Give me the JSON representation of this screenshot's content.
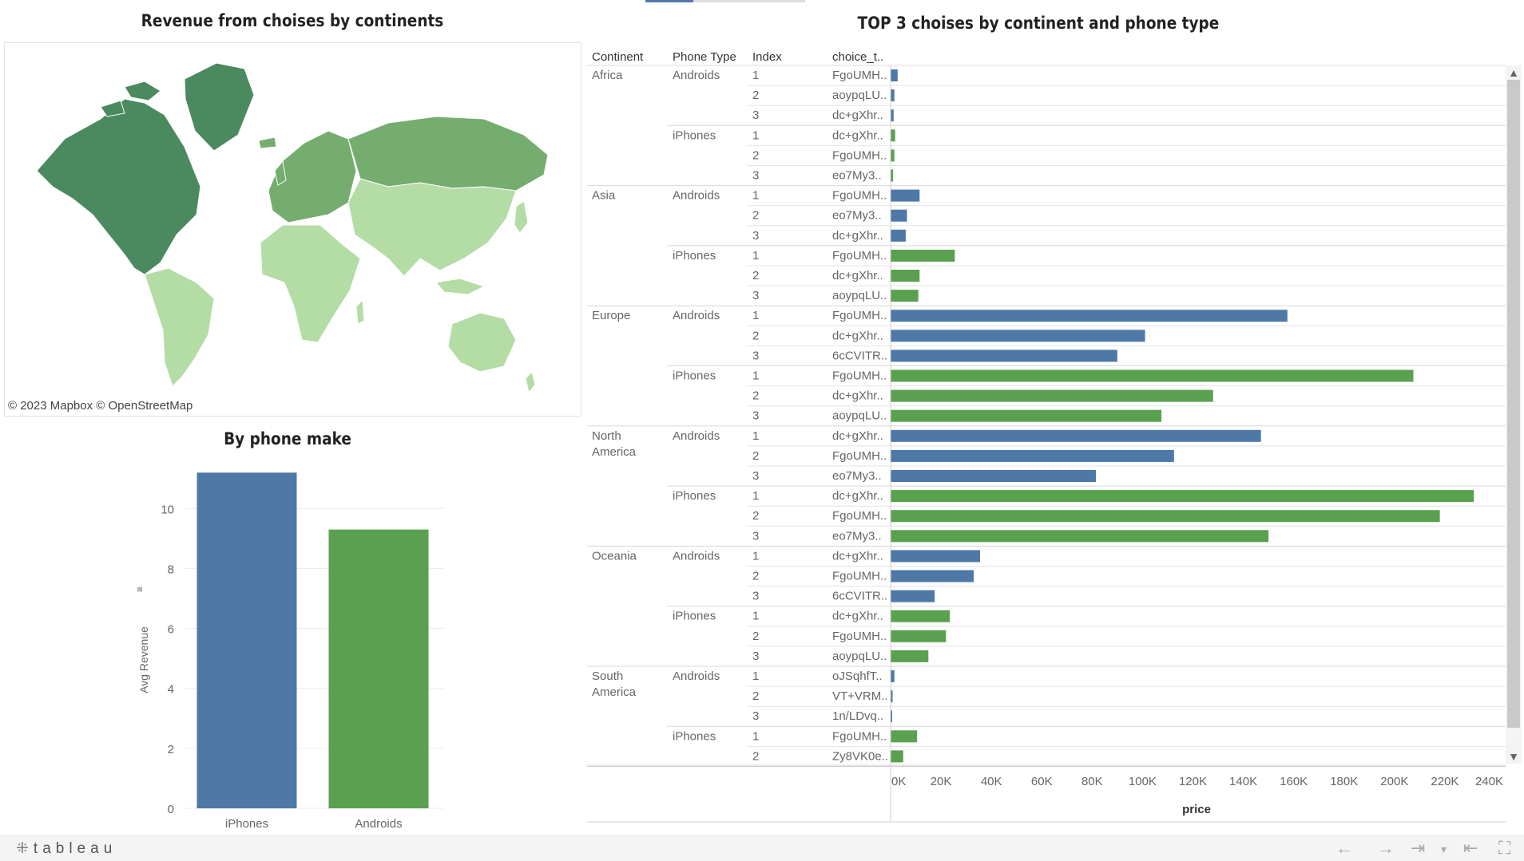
{
  "map": {
    "title": "Revenue from choises by continents",
    "attribution": "© 2023 Mapbox © OpenStreetMap",
    "legend_colors": [
      "#4a8a5e",
      "#74ad6e",
      "#b4dca5"
    ]
  },
  "make_chart": {
    "title": "By phone make",
    "chart_data": {
      "type": "bar",
      "categories": [
        "iPhones",
        "Androids"
      ],
      "values": [
        11.2,
        9.3
      ],
      "ylabel": "Avg Revenue",
      "ylim": [
        0,
        11.5
      ],
      "yticks": [
        0,
        2,
        4,
        6,
        8,
        10
      ],
      "colors": [
        "#4e79a7",
        "#59a14f"
      ],
      "grid": true
    }
  },
  "top3": {
    "title": "TOP 3 choises by continent and phone type",
    "headers": [
      "Continent",
      "Phone Type",
      "Index",
      "choice_t.."
    ],
    "chart_data": {
      "type": "bar",
      "orientation": "horizontal",
      "x_label": "price",
      "xlim": [
        0,
        240000
      ],
      "xticks": [
        "0K",
        "20K",
        "40K",
        "60K",
        "80K",
        "100K",
        "120K",
        "140K",
        "160K",
        "180K",
        "200K",
        "220K",
        "240K"
      ],
      "colors": {
        "Androids": "#4e79a7",
        "iPhones": "#59a14f"
      },
      "groups": [
        {
          "continent": [
            "Africa"
          ],
          "types": [
            {
              "type": "Androids",
              "rows": [
                {
                  "i": "1",
                  "c": "FgoUMH..",
                  "v": 2800
                },
                {
                  "i": "2",
                  "c": "aoypqLU..",
                  "v": 1500
                },
                {
                  "i": "3",
                  "c": "dc+gXhr..",
                  "v": 1200
                }
              ]
            },
            {
              "type": "iPhones",
              "rows": [
                {
                  "i": "1",
                  "c": "dc+gXhr..",
                  "v": 1800
                },
                {
                  "i": "2",
                  "c": "FgoUMH..",
                  "v": 1500
                },
                {
                  "i": "3",
                  "c": "eo7My3..",
                  "v": 1000
                }
              ]
            }
          ]
        },
        {
          "continent": [
            "Asia"
          ],
          "types": [
            {
              "type": "Androids",
              "rows": [
                {
                  "i": "1",
                  "c": "FgoUMH..",
                  "v": 11500
                },
                {
                  "i": "2",
                  "c": "eo7My3..",
                  "v": 6500
                },
                {
                  "i": "3",
                  "c": "dc+gXhr..",
                  "v": 6000
                }
              ]
            },
            {
              "type": "iPhones",
              "rows": [
                {
                  "i": "1",
                  "c": "FgoUMH..",
                  "v": 25500
                },
                {
                  "i": "2",
                  "c": "dc+gXhr..",
                  "v": 11500
                },
                {
                  "i": "3",
                  "c": "aoypqLU..",
                  "v": 11000
                }
              ]
            }
          ]
        },
        {
          "continent": [
            "Europe"
          ],
          "types": [
            {
              "type": "Androids",
              "rows": [
                {
                  "i": "1",
                  "c": "FgoUMH..",
                  "v": 157500
                },
                {
                  "i": "2",
                  "c": "dc+gXhr..",
                  "v": 101000
                },
                {
                  "i": "3",
                  "c": "6cCVITR..",
                  "v": 90000
                }
              ]
            },
            {
              "type": "iPhones",
              "rows": [
                {
                  "i": "1",
                  "c": "FgoUMH..",
                  "v": 207500
                },
                {
                  "i": "2",
                  "c": "dc+gXhr..",
                  "v": 128000
                },
                {
                  "i": "3",
                  "c": "aoypqLU..",
                  "v": 107500
                }
              ]
            }
          ]
        },
        {
          "continent": [
            "North",
            "America"
          ],
          "types": [
            {
              "type": "Androids",
              "rows": [
                {
                  "i": "1",
                  "c": "dc+gXhr..",
                  "v": 147000
                },
                {
                  "i": "2",
                  "c": "FgoUMH..",
                  "v": 112500
                },
                {
                  "i": "3",
                  "c": "eo7My3..",
                  "v": 81500
                }
              ]
            },
            {
              "type": "iPhones",
              "rows": [
                {
                  "i": "1",
                  "c": "dc+gXhr..",
                  "v": 231500
                },
                {
                  "i": "2",
                  "c": "FgoUMH..",
                  "v": 218000
                },
                {
                  "i": "3",
                  "c": "eo7My3..",
                  "v": 150000
                }
              ]
            }
          ]
        },
        {
          "continent": [
            "Oceania"
          ],
          "types": [
            {
              "type": "Androids",
              "rows": [
                {
                  "i": "1",
                  "c": "dc+gXhr..",
                  "v": 35500
                },
                {
                  "i": "2",
                  "c": "FgoUMH..",
                  "v": 33000
                },
                {
                  "i": "3",
                  "c": "6cCVITR..",
                  "v": 17500
                }
              ]
            },
            {
              "type": "iPhones",
              "rows": [
                {
                  "i": "1",
                  "c": "dc+gXhr..",
                  "v": 23500
                },
                {
                  "i": "2",
                  "c": "FgoUMH..",
                  "v": 22000
                },
                {
                  "i": "3",
                  "c": "aoypqLU..",
                  "v": 15000
                }
              ]
            }
          ]
        },
        {
          "continent": [
            "South",
            "America"
          ],
          "types": [
            {
              "type": "Androids",
              "rows": [
                {
                  "i": "1",
                  "c": "oJSqhfT..",
                  "v": 1500
                },
                {
                  "i": "2",
                  "c": "VT+VRM..",
                  "v": 800
                },
                {
                  "i": "3",
                  "c": "1n/LDvq..",
                  "v": 600
                }
              ]
            },
            {
              "type": "iPhones",
              "rows": [
                {
                  "i": "1",
                  "c": "FgoUMH..",
                  "v": 10500
                },
                {
                  "i": "2",
                  "c": "Zy8VK0e..",
                  "v": 5000
                }
              ]
            }
          ]
        }
      ]
    }
  },
  "footer": {
    "logo": "tableau"
  }
}
